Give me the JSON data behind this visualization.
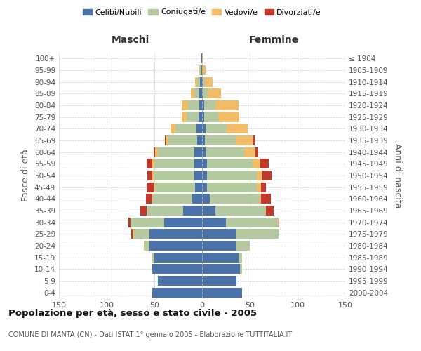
{
  "age_groups": [
    "0-4",
    "5-9",
    "10-14",
    "15-19",
    "20-24",
    "25-29",
    "30-34",
    "35-39",
    "40-44",
    "45-49",
    "50-54",
    "55-59",
    "60-64",
    "65-69",
    "70-74",
    "75-79",
    "80-84",
    "85-89",
    "90-94",
    "95-99",
    "100+"
  ],
  "birth_years": [
    "2000-2004",
    "1995-1999",
    "1990-1994",
    "1985-1989",
    "1980-1984",
    "1975-1979",
    "1970-1974",
    "1965-1969",
    "1960-1964",
    "1955-1959",
    "1950-1954",
    "1945-1949",
    "1940-1944",
    "1935-1939",
    "1930-1934",
    "1925-1929",
    "1920-1924",
    "1915-1919",
    "1910-1914",
    "1905-1909",
    "≤ 1904"
  ],
  "maschi": {
    "celibi": [
      52,
      46,
      52,
      50,
      55,
      55,
      40,
      20,
      10,
      7,
      8,
      8,
      8,
      5,
      6,
      4,
      3,
      3,
      2,
      1,
      1
    ],
    "coniugati": [
      0,
      0,
      0,
      2,
      5,
      16,
      35,
      38,
      42,
      42,
      42,
      42,
      38,
      30,
      22,
      12,
      12,
      5,
      3,
      1,
      0
    ],
    "vedovi": [
      0,
      0,
      0,
      0,
      1,
      2,
      0,
      0,
      1,
      2,
      2,
      2,
      3,
      3,
      5,
      5,
      6,
      4,
      2,
      1,
      0
    ],
    "divorziati": [
      0,
      0,
      0,
      0,
      0,
      1,
      2,
      7,
      6,
      7,
      5,
      6,
      2,
      1,
      0,
      0,
      0,
      0,
      0,
      0,
      0
    ]
  },
  "femmine": {
    "nubili": [
      42,
      36,
      40,
      38,
      35,
      35,
      25,
      14,
      8,
      5,
      5,
      5,
      4,
      3,
      4,
      2,
      2,
      1,
      1,
      0,
      0
    ],
    "coniugate": [
      0,
      0,
      2,
      4,
      15,
      45,
      55,
      52,
      52,
      52,
      52,
      48,
      40,
      32,
      22,
      15,
      12,
      5,
      2,
      1,
      0
    ],
    "vedove": [
      0,
      0,
      0,
      0,
      0,
      0,
      0,
      1,
      2,
      5,
      6,
      8,
      12,
      18,
      22,
      22,
      24,
      14,
      8,
      3,
      1
    ],
    "divorziate": [
      0,
      0,
      0,
      0,
      0,
      0,
      1,
      8,
      10,
      5,
      10,
      9,
      3,
      2,
      0,
      0,
      0,
      0,
      0,
      0,
      0
    ]
  },
  "colors": {
    "celibi": "#4a72a8",
    "coniugati": "#b5c9a0",
    "vedovi": "#f0bc68",
    "divorziati": "#c0392b"
  },
  "xlim": 150,
  "title": "Popolazione per età, sesso e stato civile - 2005",
  "subtitle": "COMUNE DI MANTA (CN) - Dati ISTAT 1° gennaio 2005 - Elaborazione TUTTITALIA.IT",
  "legend_labels": [
    "Celibi/Nubili",
    "Coniugati/e",
    "Vedovi/e",
    "Divorziati/e"
  ],
  "xlabel_left": "Maschi",
  "xlabel_right": "Femmine",
  "ylabel": "Fasce di età",
  "ylabel_right": "Anni di nascita",
  "bg_color": "#ffffff",
  "grid_color": "#cccccc"
}
